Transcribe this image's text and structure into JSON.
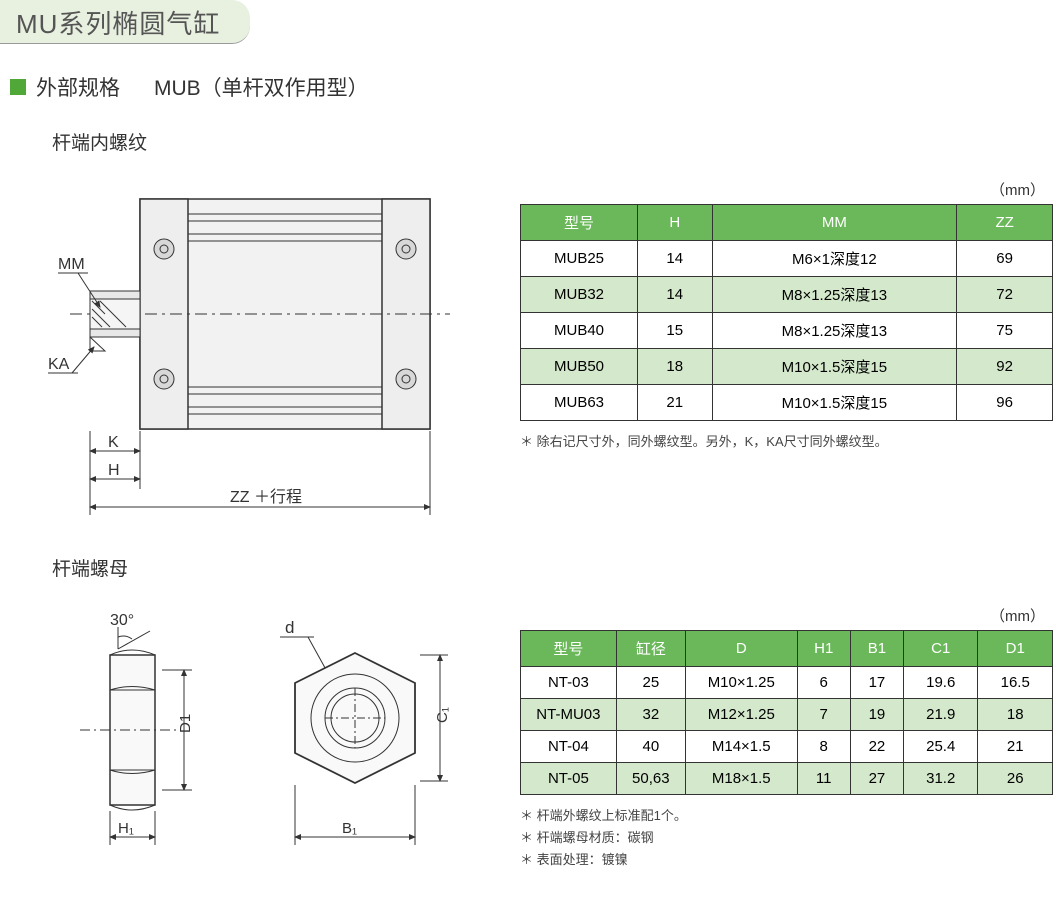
{
  "header": {
    "title": "MU系列椭圆气缸"
  },
  "section1": {
    "heading_prefix": "外部规格",
    "heading_model": "MUB（单杆双作用型）",
    "subheading": "杆端内螺纹",
    "unit": "（mm）",
    "diagram": {
      "label_MM": "MM",
      "label_KA": "KA",
      "label_K": "K",
      "label_H": "H",
      "label_ZZ": "ZZ ＋行程",
      "body_fill": "#f2f2f2",
      "stroke": "#333333",
      "accent": "#888888"
    },
    "table": {
      "header_bg": "#6bb85a",
      "header_fg": "#ffffff",
      "alt_bg": "#d4e8cc",
      "columns": [
        "型号",
        "H",
        "MM",
        "ZZ"
      ],
      "col_widths": [
        "22%",
        "14%",
        "46%",
        "18%"
      ],
      "rows": [
        {
          "alt": false,
          "cells": [
            "MUB25",
            "14",
            "M6×1深度12",
            "69"
          ]
        },
        {
          "alt": true,
          "cells": [
            "MUB32",
            "14",
            "M8×1.25深度13",
            "72"
          ]
        },
        {
          "alt": false,
          "cells": [
            "MUB40",
            "15",
            "M8×1.25深度13",
            "75"
          ]
        },
        {
          "alt": true,
          "cells": [
            "MUB50",
            "18",
            "M10×1.5深度15",
            "92"
          ]
        },
        {
          "alt": false,
          "cells": [
            "MUB63",
            "21",
            "M10×1.5深度15",
            "96"
          ]
        }
      ]
    },
    "footnote": "＊ 除右记尺寸外，同外螺纹型。另外，K，KA尺寸同外螺纹型。"
  },
  "section2": {
    "subheading": "杆端螺母",
    "unit": "（mm）",
    "diagram": {
      "label_angle": "30°",
      "label_d": "d",
      "label_D1": "D1",
      "label_H1": "H₁",
      "label_B1": "B₁",
      "label_C1": "C₁",
      "stroke": "#333333",
      "fill": "#f9f9f9"
    },
    "table": {
      "header_bg": "#6bb85a",
      "header_fg": "#ffffff",
      "alt_bg": "#d4e8cc",
      "columns": [
        "型号",
        "缸径",
        "D",
        "H1",
        "B1",
        "C1",
        "D1"
      ],
      "col_widths": [
        "18%",
        "13%",
        "21%",
        "10%",
        "10%",
        "14%",
        "14%"
      ],
      "rows": [
        {
          "alt": false,
          "cells": [
            "NT-03",
            "25",
            "M10×1.25",
            "6",
            "17",
            "19.6",
            "16.5"
          ]
        },
        {
          "alt": true,
          "cells": [
            "NT-MU03",
            "32",
            "M12×1.25",
            "7",
            "19",
            "21.9",
            "18"
          ]
        },
        {
          "alt": false,
          "cells": [
            "NT-04",
            "40",
            "M14×1.5",
            "8",
            "22",
            "25.4",
            "21"
          ]
        },
        {
          "alt": true,
          "cells": [
            "NT-05",
            "50,63",
            "M18×1.5",
            "11",
            "27",
            "31.2",
            "26"
          ]
        }
      ]
    },
    "footnotes": [
      "＊ 杆端外螺纹上标准配1个。",
      "＊ 杆端螺母材质：碳钢",
      "＊ 表面处理：镀镍"
    ]
  }
}
